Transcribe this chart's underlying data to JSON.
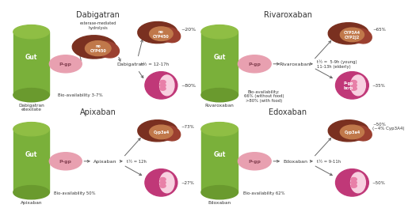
{
  "background_color": "#ffffff",
  "gut_color_top": "#8fbe44",
  "gut_color_body": "#7ab03a",
  "gut_color_bottom": "#6a9a2e",
  "gut_label": "Gut",
  "pgp_color": "#e8a0b0",
  "pgp_label": "P-gp",
  "liver_color": "#7a3020",
  "liver_color2": "#9b4030",
  "kidney_color1": "#c03878",
  "kidney_color2": "#e880a8",
  "kidney_color3": "#f8d0e0",
  "arrow_color": "#666666",
  "text_color": "#333333",
  "panels": [
    {
      "title": "Dabigatran",
      "drug_label": "Dabigatran\netexilate",
      "drug_name": "Dabigatran",
      "process_label": "esterase-mediated\nhydrolysis",
      "liver_text": "no\nCYP450",
      "liver_pct": "~20%",
      "kidney_pct": "~80%",
      "half_life": "t½ = 12-17h",
      "bioavail": "Bio-availability 3-7%",
      "has_process": true,
      "kidney_text": ""
    },
    {
      "title": "Rivaroxaban",
      "drug_label": "Rivaroxaban",
      "drug_name": "Rivaroxaban",
      "process_label": "",
      "liver_text": "CYP3A4\nCYP2J2",
      "liver_pct": "~65%",
      "kidney_pct": "~35%",
      "kidney_text": "P-gp\nbcrp",
      "half_life": "t½ =  5-9h (young)\n11-13h (elderly)",
      "bioavail": "Bio-availability:\n66% (without food)\n>80% (with food)",
      "has_process": false
    },
    {
      "title": "Apixaban",
      "drug_label": "Apixaban",
      "drug_name": "Apixaban",
      "process_label": "",
      "liver_text": "Cyp3a4",
      "liver_pct": "~73%",
      "kidney_pct": "~27%",
      "half_life": "t½ = 12h",
      "bioavail": "Bio-availability 50%",
      "has_process": false,
      "kidney_text": ""
    },
    {
      "title": "Edoxaban",
      "drug_label": "Edoxaban",
      "drug_name": "Edoxaban",
      "process_label": "",
      "liver_text": "Cyp3a4",
      "liver_pct": "~50%\n(~4% Cyp3A4)",
      "kidney_pct": "~50%",
      "half_life": "t½ = 9-11h",
      "bioavail": "Bio-availability 62%",
      "has_process": false,
      "kidney_text": ""
    }
  ]
}
